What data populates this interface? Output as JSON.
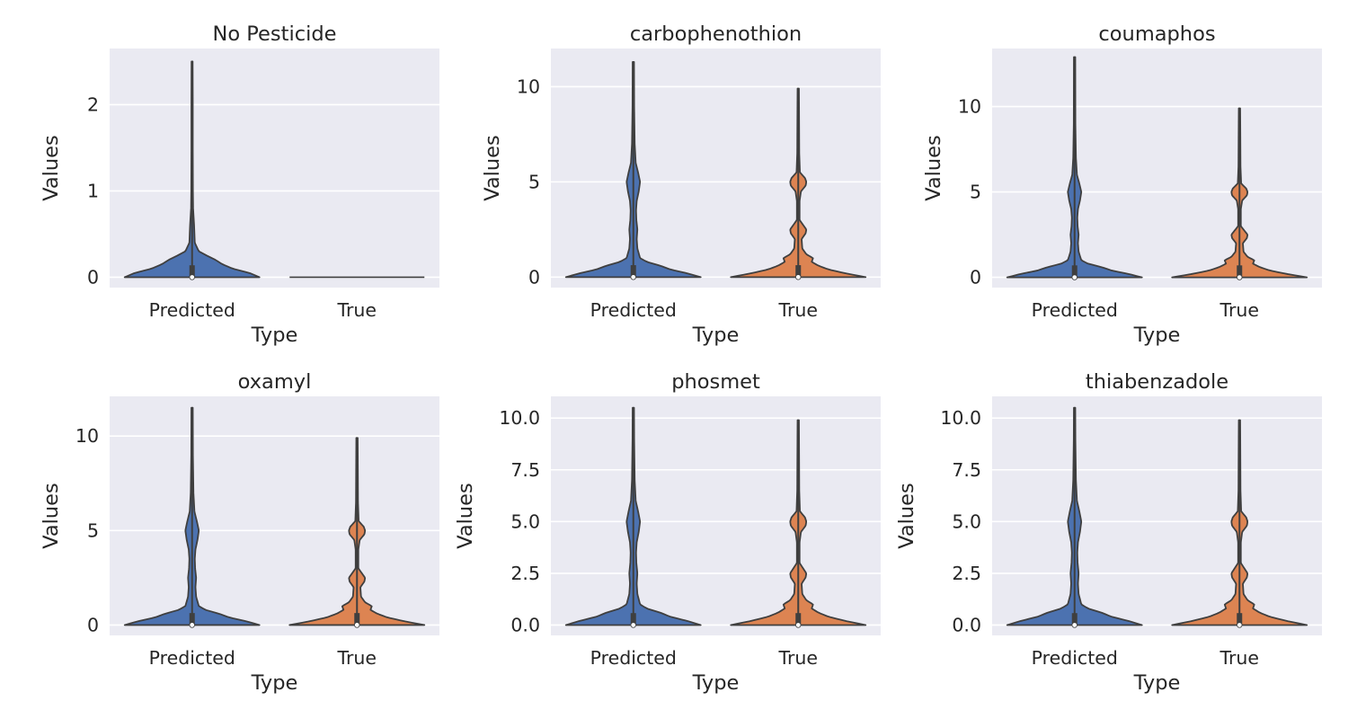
{
  "figure": {
    "background": "#ffffff",
    "axes_background": "#eaeaf2",
    "grid_color": "#ffffff",
    "text_color": "#262626",
    "outline_color": "#3f3f3f"
  },
  "chart_data": [
    {
      "type": "violin",
      "title": "No Pesticide",
      "xlabel": "Type",
      "ylabel": "Values",
      "categories": [
        "Predicted",
        "True"
      ],
      "colors": [
        "#4c72b0",
        "#dd8452"
      ],
      "ylim": [
        -0.12,
        2.65
      ],
      "yticks": [
        0,
        1,
        2
      ],
      "ytick_labels": [
        "0",
        "1",
        "2"
      ],
      "grid": true,
      "violins": [
        {
          "category": "Predicted",
          "max": 2.5,
          "median": 0,
          "density": [
            [
              0,
              1.0
            ],
            [
              0.05,
              0.85
            ],
            [
              0.1,
              0.6
            ],
            [
              0.15,
              0.45
            ],
            [
              0.2,
              0.35
            ],
            [
              0.25,
              0.22
            ],
            [
              0.3,
              0.1
            ],
            [
              0.4,
              0.04
            ],
            [
              0.6,
              0.03
            ],
            [
              0.8,
              0.015
            ],
            [
              1.0,
              0.012
            ],
            [
              1.5,
              0.01
            ],
            [
              2.0,
              0.01
            ],
            [
              2.5,
              0.008
            ]
          ]
        },
        {
          "category": "True",
          "max": 0,
          "median": 0,
          "density": [
            [
              0,
              1.0
            ]
          ]
        }
      ]
    },
    {
      "type": "violin",
      "title": "carbophenothion",
      "xlabel": "Type",
      "ylabel": "Values",
      "categories": [
        "Predicted",
        "True"
      ],
      "colors": [
        "#4c72b0",
        "#dd8452"
      ],
      "ylim": [
        -0.55,
        12.0
      ],
      "yticks": [
        0,
        5,
        10
      ],
      "ytick_labels": [
        "0",
        "5",
        "10"
      ],
      "grid": true,
      "violins": [
        {
          "category": "Predicted",
          "max": 11.3,
          "median": 0,
          "density": [
            [
              0,
              1.0
            ],
            [
              0.2,
              0.8
            ],
            [
              0.4,
              0.55
            ],
            [
              0.6,
              0.4
            ],
            [
              0.8,
              0.2
            ],
            [
              1.0,
              0.1
            ],
            [
              1.5,
              0.06
            ],
            [
              2.0,
              0.05
            ],
            [
              2.5,
              0.06
            ],
            [
              3.0,
              0.045
            ],
            [
              3.5,
              0.04
            ],
            [
              4.0,
              0.05
            ],
            [
              4.5,
              0.08
            ],
            [
              5.0,
              0.1
            ],
            [
              5.5,
              0.07
            ],
            [
              6.0,
              0.035
            ],
            [
              7.0,
              0.02
            ],
            [
              9.0,
              0.012
            ],
            [
              11.3,
              0.01
            ]
          ]
        },
        {
          "category": "True",
          "max": 9.9,
          "median": 0,
          "density": [
            [
              0,
              1.0
            ],
            [
              0.2,
              0.7
            ],
            [
              0.4,
              0.45
            ],
            [
              0.6,
              0.3
            ],
            [
              0.8,
              0.2
            ],
            [
              1.0,
              0.22
            ],
            [
              1.2,
              0.12
            ],
            [
              1.5,
              0.06
            ],
            [
              2.0,
              0.05
            ],
            [
              2.3,
              0.11
            ],
            [
              2.5,
              0.12
            ],
            [
              2.7,
              0.08
            ],
            [
              3.0,
              0.02
            ],
            [
              4.0,
              0.02
            ],
            [
              4.5,
              0.04
            ],
            [
              4.8,
              0.11
            ],
            [
              5.0,
              0.12
            ],
            [
              5.2,
              0.1
            ],
            [
              5.5,
              0.025
            ],
            [
              6.5,
              0.015
            ],
            [
              8.0,
              0.013
            ],
            [
              9.9,
              0.01
            ]
          ]
        }
      ]
    },
    {
      "type": "violin",
      "title": "coumaphos",
      "xlabel": "Type",
      "ylabel": "Values",
      "categories": [
        "Predicted",
        "True"
      ],
      "colors": [
        "#4c72b0",
        "#dd8452"
      ],
      "ylim": [
        -0.6,
        13.4
      ],
      "yticks": [
        0,
        5,
        10
      ],
      "ytick_labels": [
        "0",
        "5",
        "10"
      ],
      "grid": true,
      "violins": [
        {
          "category": "Predicted",
          "max": 12.9,
          "median": 0,
          "density": [
            [
              0,
              1.0
            ],
            [
              0.2,
              0.8
            ],
            [
              0.4,
              0.55
            ],
            [
              0.6,
              0.4
            ],
            [
              0.8,
              0.2
            ],
            [
              1.0,
              0.1
            ],
            [
              1.5,
              0.06
            ],
            [
              2.0,
              0.05
            ],
            [
              2.5,
              0.06
            ],
            [
              3.0,
              0.045
            ],
            [
              3.5,
              0.04
            ],
            [
              4.0,
              0.05
            ],
            [
              4.5,
              0.08
            ],
            [
              5.0,
              0.1
            ],
            [
              5.5,
              0.07
            ],
            [
              6.0,
              0.035
            ],
            [
              7.0,
              0.02
            ],
            [
              9.0,
              0.012
            ],
            [
              12.9,
              0.01
            ]
          ]
        },
        {
          "category": "True",
          "max": 9.9,
          "median": 0,
          "density": [
            [
              0,
              1.0
            ],
            [
              0.2,
              0.7
            ],
            [
              0.4,
              0.45
            ],
            [
              0.6,
              0.3
            ],
            [
              0.8,
              0.2
            ],
            [
              1.0,
              0.22
            ],
            [
              1.2,
              0.12
            ],
            [
              1.5,
              0.06
            ],
            [
              2.0,
              0.05
            ],
            [
              2.3,
              0.11
            ],
            [
              2.5,
              0.12
            ],
            [
              2.7,
              0.08
            ],
            [
              3.0,
              0.02
            ],
            [
              4.0,
              0.02
            ],
            [
              4.5,
              0.04
            ],
            [
              4.8,
              0.11
            ],
            [
              5.0,
              0.12
            ],
            [
              5.2,
              0.1
            ],
            [
              5.5,
              0.025
            ],
            [
              6.5,
              0.015
            ],
            [
              8.0,
              0.013
            ],
            [
              9.9,
              0.01
            ]
          ]
        }
      ]
    },
    {
      "type": "violin",
      "title": "oxamyl",
      "xlabel": "Type",
      "ylabel": "Values",
      "categories": [
        "Predicted",
        "True"
      ],
      "colors": [
        "#4c72b0",
        "#dd8452"
      ],
      "ylim": [
        -0.55,
        12.1
      ],
      "yticks": [
        0,
        5,
        10
      ],
      "ytick_labels": [
        "0",
        "5",
        "10"
      ],
      "grid": true,
      "violins": [
        {
          "category": "Predicted",
          "max": 11.5,
          "median": 0,
          "density": [
            [
              0,
              1.0
            ],
            [
              0.2,
              0.8
            ],
            [
              0.4,
              0.55
            ],
            [
              0.6,
              0.4
            ],
            [
              0.8,
              0.2
            ],
            [
              1.0,
              0.1
            ],
            [
              1.5,
              0.06
            ],
            [
              2.0,
              0.05
            ],
            [
              2.5,
              0.06
            ],
            [
              3.0,
              0.045
            ],
            [
              3.5,
              0.04
            ],
            [
              4.0,
              0.05
            ],
            [
              4.5,
              0.08
            ],
            [
              5.0,
              0.1
            ],
            [
              5.5,
              0.07
            ],
            [
              6.0,
              0.035
            ],
            [
              7.0,
              0.02
            ],
            [
              9.0,
              0.012
            ],
            [
              11.5,
              0.01
            ]
          ]
        },
        {
          "category": "True",
          "max": 9.9,
          "median": 0,
          "density": [
            [
              0,
              1.0
            ],
            [
              0.2,
              0.7
            ],
            [
              0.4,
              0.45
            ],
            [
              0.6,
              0.3
            ],
            [
              0.8,
              0.2
            ],
            [
              1.0,
              0.22
            ],
            [
              1.2,
              0.12
            ],
            [
              1.5,
              0.06
            ],
            [
              2.0,
              0.05
            ],
            [
              2.3,
              0.11
            ],
            [
              2.5,
              0.12
            ],
            [
              2.7,
              0.08
            ],
            [
              3.0,
              0.02
            ],
            [
              4.0,
              0.02
            ],
            [
              4.5,
              0.04
            ],
            [
              4.8,
              0.11
            ],
            [
              5.0,
              0.12
            ],
            [
              5.2,
              0.1
            ],
            [
              5.5,
              0.025
            ],
            [
              6.5,
              0.015
            ],
            [
              8.0,
              0.013
            ],
            [
              9.9,
              0.01
            ]
          ]
        }
      ]
    },
    {
      "type": "violin",
      "title": "phosmet",
      "xlabel": "Type",
      "ylabel": "Values",
      "categories": [
        "Predicted",
        "True"
      ],
      "colors": [
        "#4c72b0",
        "#dd8452"
      ],
      "ylim": [
        -0.5,
        11.05
      ],
      "yticks": [
        0,
        2.5,
        5,
        7.5,
        10
      ],
      "ytick_labels": [
        "0.0",
        "2.5",
        "5.0",
        "7.5",
        "10.0"
      ],
      "grid": true,
      "violins": [
        {
          "category": "Predicted",
          "max": 10.5,
          "median": 0,
          "density": [
            [
              0,
              1.0
            ],
            [
              0.2,
              0.8
            ],
            [
              0.4,
              0.55
            ],
            [
              0.6,
              0.4
            ],
            [
              0.8,
              0.2
            ],
            [
              1.0,
              0.1
            ],
            [
              1.5,
              0.06
            ],
            [
              2.0,
              0.05
            ],
            [
              2.5,
              0.06
            ],
            [
              3.0,
              0.045
            ],
            [
              3.5,
              0.04
            ],
            [
              4.0,
              0.05
            ],
            [
              4.5,
              0.08
            ],
            [
              5.0,
              0.1
            ],
            [
              5.5,
              0.07
            ],
            [
              6.0,
              0.035
            ],
            [
              7.0,
              0.02
            ],
            [
              9.0,
              0.012
            ],
            [
              10.5,
              0.01
            ]
          ]
        },
        {
          "category": "True",
          "max": 9.9,
          "median": 0,
          "density": [
            [
              0,
              1.0
            ],
            [
              0.2,
              0.7
            ],
            [
              0.4,
              0.45
            ],
            [
              0.6,
              0.3
            ],
            [
              0.8,
              0.2
            ],
            [
              1.0,
              0.22
            ],
            [
              1.2,
              0.12
            ],
            [
              1.5,
              0.06
            ],
            [
              2.0,
              0.05
            ],
            [
              2.3,
              0.11
            ],
            [
              2.5,
              0.12
            ],
            [
              2.7,
              0.08
            ],
            [
              3.0,
              0.02
            ],
            [
              4.0,
              0.02
            ],
            [
              4.5,
              0.04
            ],
            [
              4.8,
              0.11
            ],
            [
              5.0,
              0.12
            ],
            [
              5.2,
              0.1
            ],
            [
              5.5,
              0.025
            ],
            [
              6.5,
              0.015
            ],
            [
              8.0,
              0.013
            ],
            [
              9.9,
              0.01
            ]
          ]
        }
      ]
    },
    {
      "type": "violin",
      "title": "thiabenzadole",
      "xlabel": "Type",
      "ylabel": "Values",
      "categories": [
        "Predicted",
        "True"
      ],
      "colors": [
        "#4c72b0",
        "#dd8452"
      ],
      "ylim": [
        -0.5,
        11.05
      ],
      "yticks": [
        0,
        2.5,
        5,
        7.5,
        10
      ],
      "ytick_labels": [
        "0.0",
        "2.5",
        "5.0",
        "7.5",
        "10.0"
      ],
      "grid": true,
      "violins": [
        {
          "category": "Predicted",
          "max": 10.5,
          "median": 0,
          "density": [
            [
              0,
              1.0
            ],
            [
              0.2,
              0.8
            ],
            [
              0.4,
              0.55
            ],
            [
              0.6,
              0.4
            ],
            [
              0.8,
              0.2
            ],
            [
              1.0,
              0.1
            ],
            [
              1.5,
              0.06
            ],
            [
              2.0,
              0.05
            ],
            [
              2.5,
              0.06
            ],
            [
              3.0,
              0.045
            ],
            [
              3.5,
              0.04
            ],
            [
              4.0,
              0.05
            ],
            [
              4.5,
              0.08
            ],
            [
              5.0,
              0.1
            ],
            [
              5.5,
              0.07
            ],
            [
              6.0,
              0.035
            ],
            [
              7.0,
              0.02
            ],
            [
              9.0,
              0.012
            ],
            [
              10.5,
              0.01
            ]
          ]
        },
        {
          "category": "True",
          "max": 9.9,
          "median": 0,
          "density": [
            [
              0,
              1.0
            ],
            [
              0.2,
              0.7
            ],
            [
              0.4,
              0.45
            ],
            [
              0.6,
              0.3
            ],
            [
              0.8,
              0.2
            ],
            [
              1.0,
              0.22
            ],
            [
              1.2,
              0.12
            ],
            [
              1.5,
              0.06
            ],
            [
              2.0,
              0.05
            ],
            [
              2.3,
              0.11
            ],
            [
              2.5,
              0.12
            ],
            [
              2.7,
              0.08
            ],
            [
              3.0,
              0.02
            ],
            [
              4.0,
              0.02
            ],
            [
              4.5,
              0.04
            ],
            [
              4.8,
              0.11
            ],
            [
              5.0,
              0.12
            ],
            [
              5.2,
              0.1
            ],
            [
              5.5,
              0.025
            ],
            [
              6.5,
              0.015
            ],
            [
              8.0,
              0.013
            ],
            [
              9.9,
              0.01
            ]
          ]
        }
      ]
    }
  ]
}
